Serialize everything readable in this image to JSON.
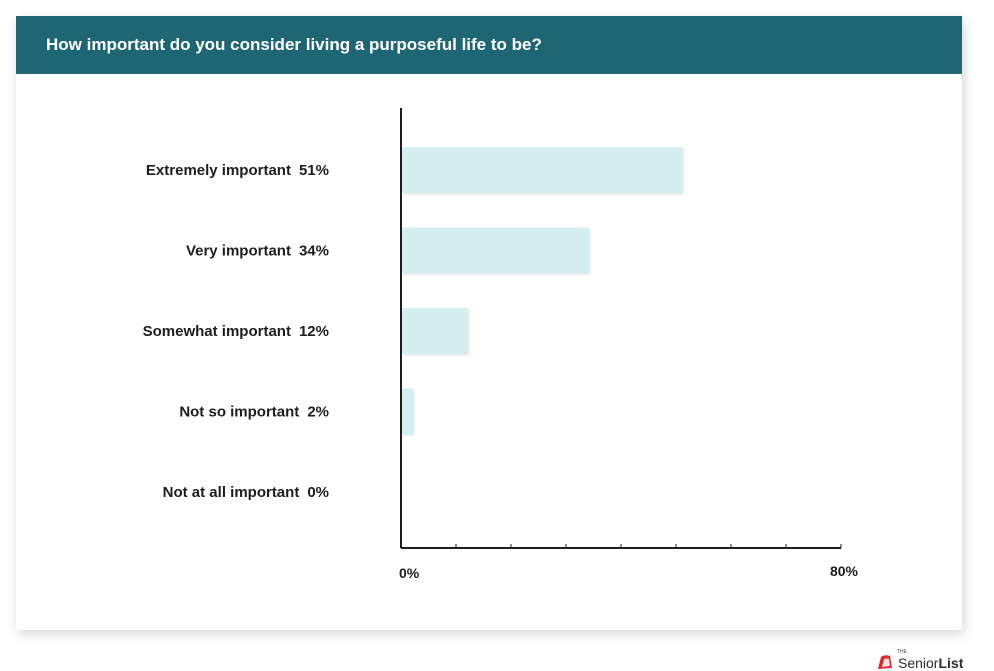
{
  "header": {
    "title": "How important do you consider living a purposeful life to be?"
  },
  "colors": {
    "header_bg": "#1f6675",
    "bar_fill": "#d5eff1",
    "axis": "#1d1d1d",
    "logo_red": "#d9282f"
  },
  "chart_data": {
    "type": "bar",
    "orientation": "horizontal",
    "title": "How important do you consider living a purposeful life to be?",
    "categories": [
      "Extremely important",
      "Very important",
      "Somewhat important",
      "Not so important",
      "Not at all important"
    ],
    "values": [
      51,
      34,
      12,
      2,
      0
    ],
    "value_labels": [
      "51%",
      "34%",
      "12%",
      "2%",
      "0%"
    ],
    "xlim": [
      0,
      80
    ],
    "x_tick_labels": [
      "0%",
      "80%"
    ],
    "x_minor_ticks": 8,
    "grid": false,
    "legend": "none"
  },
  "logo": {
    "the": "THE",
    "brand_light": "Senior",
    "brand_bold": "List",
    "icon": "seniorlist-logo-icon"
  }
}
